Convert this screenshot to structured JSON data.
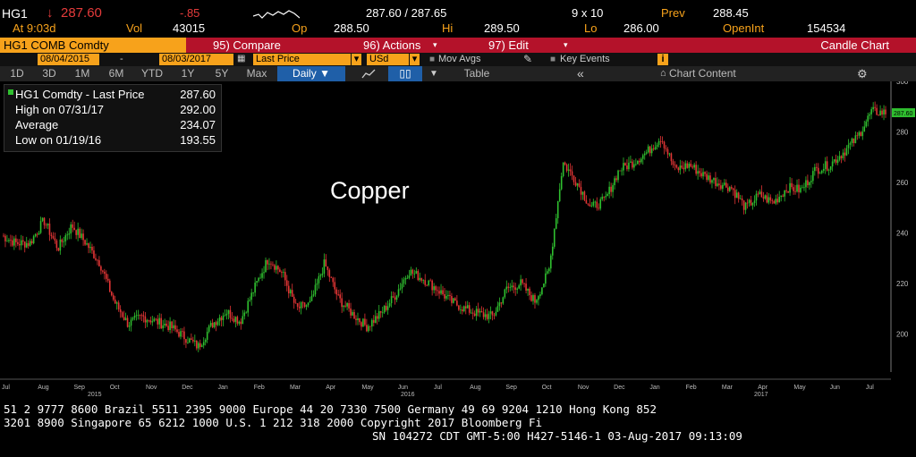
{
  "header": {
    "ticker": "HG1",
    "change_arrow": "↓",
    "last_price": "287.60",
    "change": "-.85",
    "bid_ask": "287.60 / 287.65",
    "size": "9 x 10",
    "prev_label": "Prev",
    "prev_value": "288.45",
    "at_time": "At 9:03d",
    "vol_label": "Vol",
    "vol_value": "43015",
    "op_label": "Op",
    "op_value": "288.50",
    "hi_label": "Hi",
    "hi_value": "289.50",
    "lo_label": "Lo",
    "lo_value": "286.00",
    "openint_label": "OpenInt",
    "openint_value": "154534"
  },
  "toolbar": {
    "security": "HG1 COMB Comdty",
    "compare": "95) Compare",
    "actions": "96) Actions",
    "edit": "97) Edit",
    "chart_type": "Candle Chart"
  },
  "settings": {
    "start_date": "08/04/2015",
    "end_date": "08/03/2017",
    "dash": "-",
    "field": "Last Price",
    "currency": "USd",
    "mov_avgs": "Mov Avgs",
    "key_events": "Key Events",
    "info_icon": "i"
  },
  "timeframes": [
    "1D",
    "3D",
    "1M",
    "6M",
    "YTD",
    "1Y",
    "5Y",
    "Max"
  ],
  "period": "Daily",
  "table_label": "Table",
  "chart_content_label": "Chart Content",
  "legend": {
    "rows": [
      {
        "label": "HG1 Comdty - Last Price",
        "value": "287.60"
      },
      {
        "label": "High on 07/31/17",
        "value": "292.00"
      },
      {
        "label": "Average",
        "value": "234.07"
      },
      {
        "label": "Low on 01/19/16",
        "value": "193.55"
      }
    ]
  },
  "chart_title": "Copper",
  "chart_data": {
    "type": "candlestick",
    "title": "Copper",
    "ylim": [
      185,
      300
    ],
    "yticks": [
      "300",
      "280",
      "260",
      "240",
      "220",
      "200"
    ],
    "last_price_label": "287.60",
    "months": [
      "Jul",
      "Aug",
      "Sep",
      "Oct",
      "Nov",
      "Dec",
      "Jan",
      "Feb",
      "Mar",
      "Apr",
      "May",
      "Jun",
      "Jul",
      "Aug",
      "Sep",
      "Oct",
      "Nov",
      "Dec",
      "Jan",
      "Feb",
      "Mar",
      "Apr",
      "May",
      "Jun",
      "Jul"
    ],
    "years": [
      "2015",
      "2016",
      "2017"
    ],
    "x": [
      0,
      0.5,
      1,
      1.5,
      2,
      2.5,
      3,
      3.5,
      4,
      4.5,
      5,
      5.5,
      6,
      6.5,
      7,
      7.5,
      8,
      8.5,
      9,
      9.5,
      10,
      10.5,
      11,
      11.5,
      12,
      12.5,
      13,
      13.5,
      14,
      14.5,
      15,
      15.5,
      16,
      16.5,
      17,
      17.5,
      18,
      18.5,
      19,
      19.5,
      20,
      20.5,
      21,
      21.5,
      22,
      22.5,
      23,
      23.5,
      24,
      24.5
    ],
    "close": [
      239,
      236,
      236,
      245,
      234,
      243,
      236,
      228,
      213,
      204,
      207,
      205,
      203,
      199,
      195,
      204,
      209,
      205,
      218,
      230,
      224,
      210,
      212,
      228,
      214,
      208,
      203,
      208,
      215,
      225,
      222,
      218,
      213,
      210,
      208,
      207,
      218,
      220,
      213,
      225,
      268,
      260,
      250,
      253,
      265,
      268,
      272,
      278,
      265,
      267
    ],
    "close_tail": [
      263,
      260,
      258,
      250,
      255,
      252,
      258,
      257,
      265,
      267,
      272,
      278,
      288,
      287.6
    ]
  },
  "ticker_lines": [
    "51 2 9777 8600 Brazil 5511 2395 9000 Europe 44 20 7330 7500 Germany 49 69 9204 1210 Hong Kong 852",
    "3201 8900        Singapore 65 6212 1000        U.S. 1 212 318 2000        Copyright 2017 Bloomberg Fi",
    "SN 104272 CDT  GMT-5:00 H427-5146-1 03-Aug-2017 09:13:09"
  ],
  "colors": {
    "orange": "#f7a21b",
    "red_bar": "#b4122a",
    "up": "#2fbf2f",
    "down": "#e23535",
    "accent_blue": "#1f5fa8"
  }
}
